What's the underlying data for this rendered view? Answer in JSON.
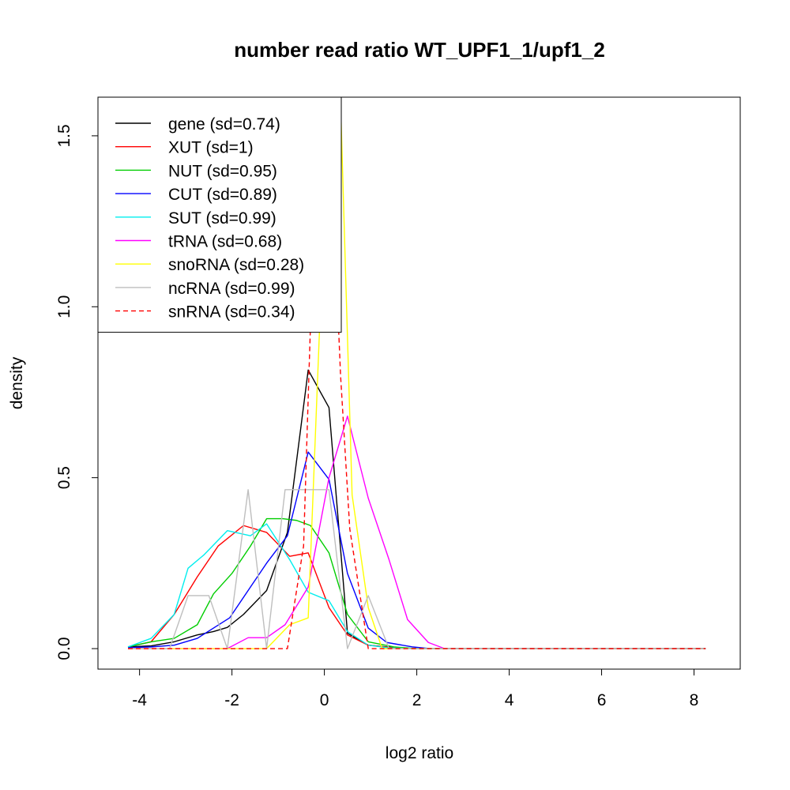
{
  "chart_data": {
    "type": "line",
    "title": "number read ratio WT_UPF1_1/upf1_2",
    "xlabel": "log2 ratio",
    "ylabel": "density",
    "xlim": [
      -4.9,
      9.0
    ],
    "ylim": [
      -0.06,
      1.613
    ],
    "x_ticks": [
      -4,
      -2,
      0,
      2,
      4,
      6,
      8
    ],
    "y_ticks": [
      0.0,
      0.5,
      1.0,
      1.5
    ],
    "x_tick_labels": [
      "-4",
      "-2",
      "0",
      "2",
      "4",
      "6",
      "8"
    ],
    "y_tick_labels": [
      "0.0",
      "0.5",
      "1.0",
      "1.5"
    ],
    "grid": false,
    "legend_position": "top-left",
    "series": [
      {
        "name": "gene (sd=0.74)",
        "color": "#000000",
        "dash": "solid",
        "x": [
          -4.25,
          -3.75,
          -3.25,
          -2.75,
          -2.4,
          -2.1,
          -1.75,
          -1.25,
          -0.8,
          -0.35,
          0.1,
          0.5,
          0.95,
          1.5,
          2.0,
          2.5,
          8.25
        ],
        "y": [
          0.005,
          0.008,
          0.02,
          0.04,
          0.05,
          0.062,
          0.1,
          0.17,
          0.34,
          0.815,
          0.705,
          0.045,
          0.01,
          0.003,
          0.0,
          0.0,
          0.0
        ]
      },
      {
        "name": "XUT (sd=1)",
        "color": "#ff0000",
        "dash": "solid",
        "x": [
          -4.25,
          -3.75,
          -3.25,
          -2.75,
          -2.3,
          -1.75,
          -1.25,
          -0.75,
          -0.35,
          0.1,
          0.5,
          0.95,
          1.5,
          2.0,
          8.25
        ],
        "y": [
          0.005,
          0.02,
          0.1,
          0.21,
          0.3,
          0.36,
          0.34,
          0.27,
          0.28,
          0.12,
          0.04,
          0.01,
          0.002,
          0.0,
          0.0
        ]
      },
      {
        "name": "NUT (sd=0.95)",
        "color": "#00cd00",
        "dash": "solid",
        "x": [
          -4.25,
          -3.75,
          -3.25,
          -2.75,
          -2.4,
          -2.0,
          -1.6,
          -1.25,
          -0.9,
          -0.6,
          -0.3,
          0.1,
          0.5,
          0.95,
          1.5,
          2.0,
          8.25
        ],
        "y": [
          0.005,
          0.02,
          0.03,
          0.07,
          0.16,
          0.22,
          0.3,
          0.38,
          0.38,
          0.375,
          0.36,
          0.28,
          0.1,
          0.02,
          0.005,
          0.0,
          0.0
        ]
      },
      {
        "name": "CUT (sd=0.89)",
        "color": "#0000ff",
        "dash": "solid",
        "x": [
          -4.25,
          -3.75,
          -3.25,
          -2.75,
          -2.4,
          -2.05,
          -1.6,
          -1.25,
          -0.8,
          -0.35,
          0.1,
          0.5,
          0.95,
          1.35,
          1.9,
          2.3,
          8.25
        ],
        "y": [
          0.003,
          0.005,
          0.01,
          0.03,
          0.06,
          0.09,
          0.18,
          0.25,
          0.33,
          0.575,
          0.495,
          0.22,
          0.06,
          0.018,
          0.005,
          0.0,
          0.0
        ]
      },
      {
        "name": "SUT (sd=0.99)",
        "color": "#00eeee",
        "dash": "solid",
        "x": [
          -4.25,
          -3.75,
          -3.25,
          -2.95,
          -2.6,
          -2.1,
          -1.6,
          -1.25,
          -0.75,
          -0.35,
          0.1,
          0.5,
          0.95,
          1.4,
          2.0,
          8.25
        ],
        "y": [
          0.005,
          0.03,
          0.1,
          0.235,
          0.275,
          0.345,
          0.33,
          0.365,
          0.26,
          0.165,
          0.14,
          0.05,
          0.01,
          0.002,
          0.0,
          0.0
        ]
      },
      {
        "name": "tRNA (sd=0.68)",
        "color": "#ff00ff",
        "dash": "solid",
        "x": [
          -4.25,
          -2.1,
          -1.65,
          -1.25,
          -0.85,
          -0.35,
          0.1,
          0.5,
          0.95,
          1.4,
          1.8,
          2.25,
          2.6,
          8.25
        ],
        "y": [
          0.0,
          0.0,
          0.032,
          0.032,
          0.07,
          0.18,
          0.5,
          0.68,
          0.44,
          0.26,
          0.085,
          0.018,
          0.0,
          0.0
        ]
      },
      {
        "name": "snoRNA (sd=0.28)",
        "color": "#ffff00",
        "dash": "solid",
        "x": [
          -4.25,
          -1.25,
          -0.75,
          -0.35,
          -0.1,
          0.1,
          0.35,
          0.6,
          0.95,
          1.25,
          8.25
        ],
        "y": [
          0.0,
          0.0,
          0.07,
          0.09,
          0.95,
          1.6,
          1.6,
          0.45,
          0.12,
          0.0,
          0.0
        ]
      },
      {
        "name": "ncRNA (sd=0.99)",
        "color": "#bebebe",
        "dash": "solid",
        "x": [
          -4.25,
          -3.35,
          -2.95,
          -2.5,
          -2.1,
          -1.65,
          -1.25,
          -0.85,
          -0.35,
          0.1,
          0.5,
          0.95,
          1.4,
          8.25
        ],
        "y": [
          0.0,
          0.0,
          0.155,
          0.155,
          0.0,
          0.465,
          0.0,
          0.465,
          0.465,
          0.465,
          0.0,
          0.155,
          0.0,
          0.0
        ]
      },
      {
        "name": "snRNA (sd=0.34)",
        "color": "#ff0000",
        "dash": "dashed",
        "x": [
          -4.25,
          -0.8,
          -0.45,
          -0.15,
          0.1,
          0.35,
          0.55,
          0.95,
          8.25
        ],
        "y": [
          0.0,
          0.0,
          0.3,
          1.6,
          1.6,
          0.8,
          0.35,
          0.0,
          0.0
        ]
      }
    ]
  }
}
